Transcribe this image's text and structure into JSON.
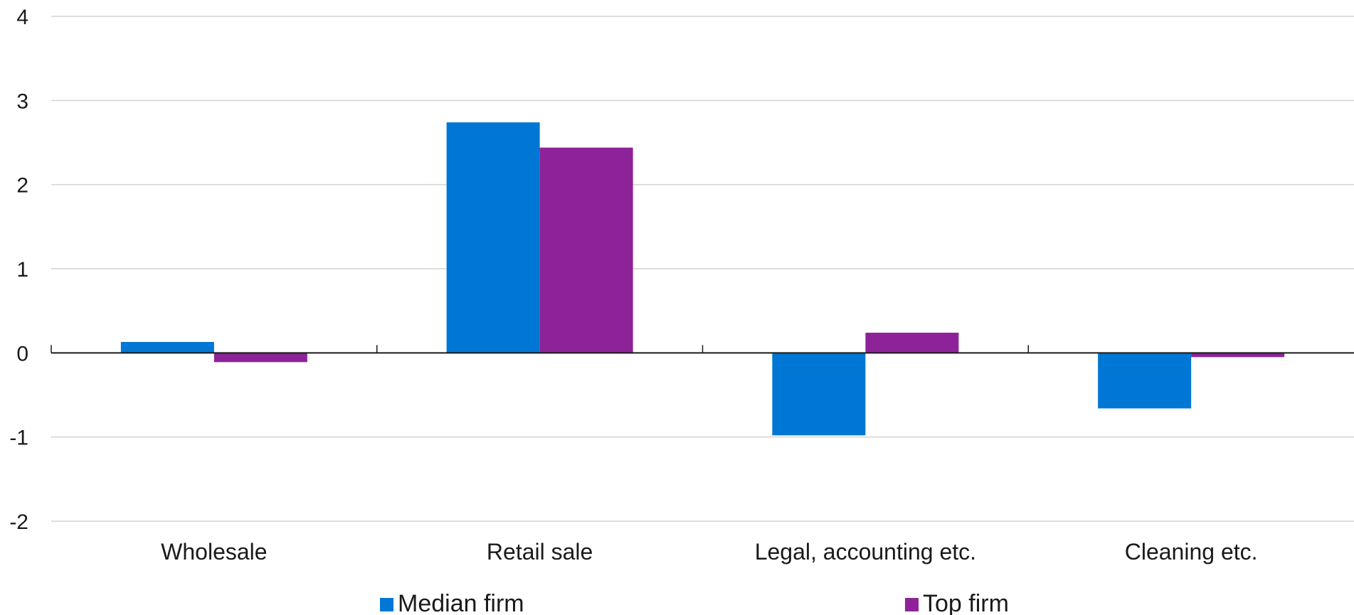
{
  "chart_data": {
    "type": "bar",
    "categories": [
      "Wholesale",
      "Retail sale",
      "Legal, accounting etc.",
      "Cleaning etc."
    ],
    "series": [
      {
        "name": "Median firm",
        "values": [
          0.13,
          2.74,
          -0.98,
          -0.66
        ],
        "color": "#0077D4"
      },
      {
        "name": "Top firm",
        "values": [
          -0.11,
          2.44,
          0.24,
          -0.05
        ],
        "color": "#8E2399"
      }
    ],
    "ylim": [
      -2,
      4
    ],
    "yticks": [
      -2,
      -1,
      0,
      1,
      2,
      3,
      4
    ],
    "ytick_labels": [
      "-2",
      "-1",
      "0",
      "1",
      "2",
      "3",
      "4"
    ],
    "grid": true,
    "legend_position": "bottom",
    "title": "",
    "xlabel": "",
    "ylabel": ""
  }
}
